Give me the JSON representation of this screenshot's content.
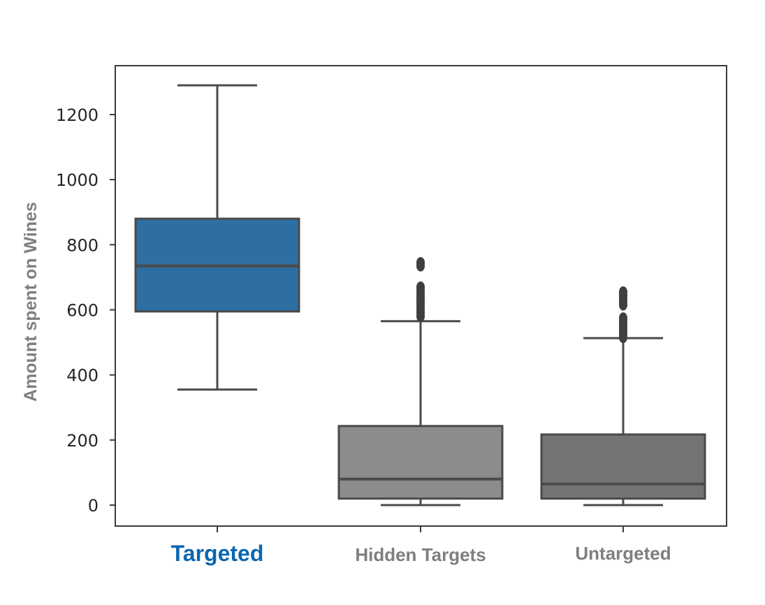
{
  "chart_data": {
    "type": "box",
    "ylabel": "Amount spent on Wines",
    "xlabel": "",
    "ylim": [
      -65,
      1350
    ],
    "yticks": [
      0,
      200,
      400,
      600,
      800,
      1000,
      1200
    ],
    "grid": false,
    "categories": [
      {
        "label": "Targeted",
        "label_color": "#0b67b2",
        "box_color": "#2e6fa3",
        "whisker_low": 355,
        "q1": 595,
        "median": 735,
        "q3": 880,
        "whisker_high": 1290,
        "outliers": []
      },
      {
        "label": "Hidden Targets",
        "label_color": "#7f7f7f",
        "box_color": "#8c8c8c",
        "whisker_low": 0,
        "q1": 20,
        "median": 80,
        "q3": 243,
        "whisker_high": 565,
        "outliers": [
          580,
          590,
          600,
          610,
          620,
          630,
          640,
          650,
          660,
          670,
          735,
          745
        ]
      },
      {
        "label": "Untargeted",
        "label_color": "#7f7f7f",
        "box_color": "#747474",
        "whisker_low": 0,
        "q1": 20,
        "median": 65,
        "q3": 217,
        "whisker_high": 513,
        "outliers": [
          515,
          525,
          535,
          545,
          555,
          565,
          575,
          615,
          625,
          635,
          645,
          655
        ]
      }
    ]
  }
}
